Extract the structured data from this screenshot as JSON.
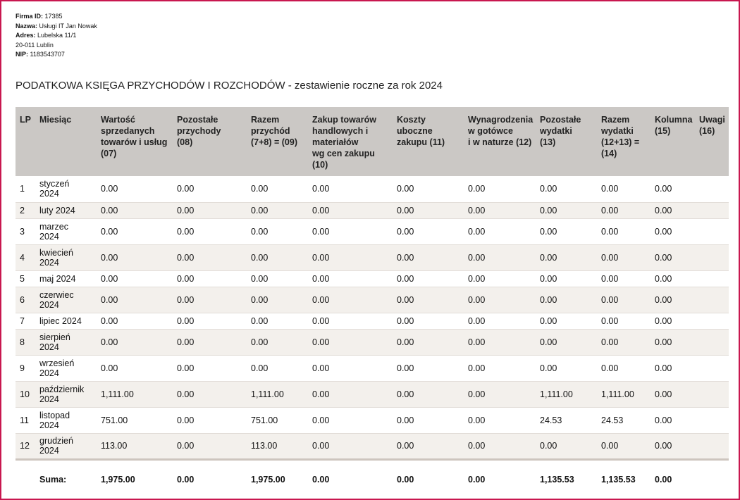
{
  "header": {
    "company": [
      {
        "label": "Firma ID:",
        "value": "17385"
      },
      {
        "label": "Nazwa:",
        "value": "Usługi IT Jan Nowak"
      },
      {
        "label": "Adres:",
        "value": "Lubelska 11/1"
      },
      {
        "label": null,
        "value": "20-011  Lublin"
      },
      {
        "label": "NIP:",
        "value": "1183543707"
      }
    ],
    "title": "PODATKOWA KSIĘGA PRZYCHODÓW I ROZCHODÓW - zestawienie roczne za rok 2024"
  },
  "table": {
    "columns": [
      [
        "LP"
      ],
      [
        "Miesiąc"
      ],
      [
        "Wartość",
        "sprzedanych",
        "towarów i usług",
        "(07)"
      ],
      [
        "Pozostałe",
        "przychody",
        "(08)"
      ],
      [
        "Razem",
        "przychód",
        "(7+8) = (09)"
      ],
      [
        "Zakup towarów",
        "handlowych i",
        "materiałów",
        "wg cen zakupu",
        "(10)"
      ],
      [
        "Koszty",
        "uboczne",
        "zakupu (11)"
      ],
      [
        "Wynagrodzenia",
        "w gotówce",
        "i w naturze (12)"
      ],
      [
        "Pozostałe",
        "wydatki",
        "(13)"
      ],
      [
        "Razem",
        "wydatki",
        "(12+13) =",
        "(14)"
      ],
      [
        "Kolumna",
        "(15)"
      ],
      [
        "Uwagi",
        "(16)"
      ]
    ],
    "rows": [
      [
        "1",
        "styczeń 2024",
        "0.00",
        "0.00",
        "0.00",
        "0.00",
        "0.00",
        "0.00",
        "0.00",
        "0.00",
        "0.00"
      ],
      [
        "2",
        "luty 2024",
        "0.00",
        "0.00",
        "0.00",
        "0.00",
        "0.00",
        "0.00",
        "0.00",
        "0.00",
        "0.00"
      ],
      [
        "3",
        "marzec 2024",
        "0.00",
        "0.00",
        "0.00",
        "0.00",
        "0.00",
        "0.00",
        "0.00",
        "0.00",
        "0.00"
      ],
      [
        "4",
        "kwiecień 2024",
        "0.00",
        "0.00",
        "0.00",
        "0.00",
        "0.00",
        "0.00",
        "0.00",
        "0.00",
        "0.00"
      ],
      [
        "5",
        "maj 2024",
        "0.00",
        "0.00",
        "0.00",
        "0.00",
        "0.00",
        "0.00",
        "0.00",
        "0.00",
        "0.00"
      ],
      [
        "6",
        "czerwiec 2024",
        "0.00",
        "0.00",
        "0.00",
        "0.00",
        "0.00",
        "0.00",
        "0.00",
        "0.00",
        "0.00"
      ],
      [
        "7",
        "lipiec 2024",
        "0.00",
        "0.00",
        "0.00",
        "0.00",
        "0.00",
        "0.00",
        "0.00",
        "0.00",
        "0.00"
      ],
      [
        "8",
        "sierpień 2024",
        "0.00",
        "0.00",
        "0.00",
        "0.00",
        "0.00",
        "0.00",
        "0.00",
        "0.00",
        "0.00"
      ],
      [
        "9",
        "wrzesień 2024",
        "0.00",
        "0.00",
        "0.00",
        "0.00",
        "0.00",
        "0.00",
        "0.00",
        "0.00",
        "0.00"
      ],
      [
        "10",
        "październik 2024",
        "1,111.00",
        "0.00",
        "1,111.00",
        "0.00",
        "0.00",
        "0.00",
        "1,111.00",
        "1,111.00",
        "0.00"
      ],
      [
        "11",
        "listopad 2024",
        "751.00",
        "0.00",
        "751.00",
        "0.00",
        "0.00",
        "0.00",
        "24.53",
        "24.53",
        "0.00"
      ],
      [
        "12",
        "grudzień 2024",
        "113.00",
        "0.00",
        "113.00",
        "0.00",
        "0.00",
        "0.00",
        "0.00",
        "0.00",
        "0.00"
      ]
    ],
    "total": [
      "Suma:",
      "1,975.00",
      "0.00",
      "1,975.00",
      "0.00",
      "0.00",
      "0.00",
      "1,135.53",
      "1,135.53",
      "0.00"
    ]
  }
}
